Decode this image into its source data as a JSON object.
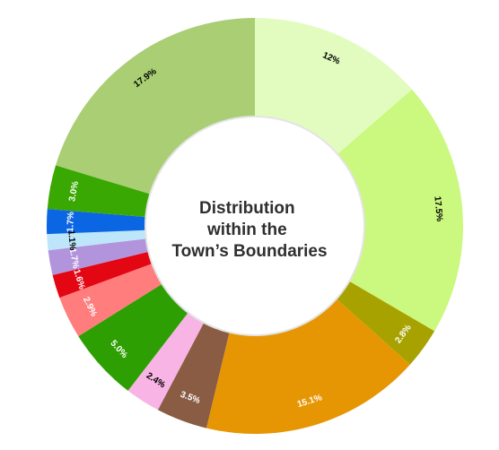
{
  "chart_data": {
    "type": "pie",
    "variant": "donut",
    "center_title": [
      "Distribution",
      "within the",
      "Town’s Boundaries"
    ],
    "slices": [
      {
        "label": "12%",
        "value": 12.0,
        "color": "#e2fcc0",
        "label_color": "#000000"
      },
      {
        "label": "17.5%",
        "value": 17.5,
        "color": "#cbf87e",
        "label_color": "#000000"
      },
      {
        "label": "2.8%",
        "value": 2.8,
        "color": "#a8a200",
        "label_color": "#ffffff"
      },
      {
        "label": "15.1%",
        "value": 15.1,
        "color": "#e69603",
        "label_color": "#ffffff"
      },
      {
        "label": "3.5%",
        "value": 3.5,
        "color": "#895c43",
        "label_color": "#ffffff"
      },
      {
        "label": "2.4%",
        "value": 2.4,
        "color": "#f7b4e4",
        "label_color": "#000000"
      },
      {
        "label": "5.0%",
        "value": 5.0,
        "color": "#2e9f03",
        "label_color": "#ffffff"
      },
      {
        "label": "2.9%",
        "value": 2.9,
        "color": "#ff7d7d",
        "label_color": "#ffffff"
      },
      {
        "label": "1.6%",
        "value": 1.6,
        "color": "#e30613",
        "label_color": "#ffffff"
      },
      {
        "label": "1.7%",
        "value": 1.7,
        "color": "#b294dc",
        "label_color": "#ffffff"
      },
      {
        "label": "1.1%",
        "value": 1.1,
        "color": "#bde6fa",
        "label_color": "#000000"
      },
      {
        "label": "1.7%",
        "value": 1.7,
        "color": "#0b66e4",
        "label_color": "#ffffff"
      },
      {
        "label": "3.0%",
        "value": 3.0,
        "color": "#3aa803",
        "label_color": "#ffffff"
      },
      {
        "label": "17.9%",
        "value": 17.9,
        "color": "#a9ce74",
        "label_color": "#000000"
      }
    ]
  }
}
